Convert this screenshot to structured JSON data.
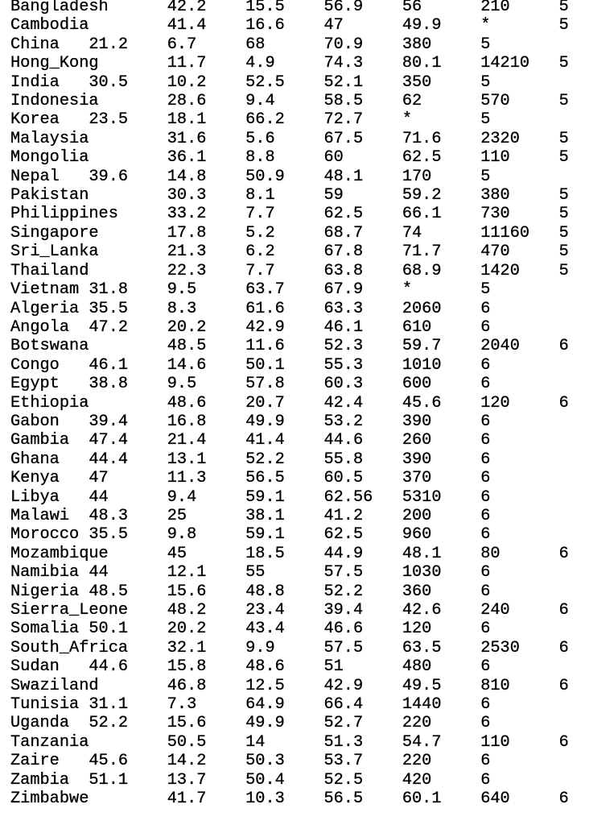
{
  "table": {
    "rows": [
      [
        "Bangladesh",
        "42.2",
        "15.5",
        "56.9",
        "56",
        "210",
        "5"
      ],
      [
        "Cambodia",
        "41.4",
        "16.6",
        "47",
        "49.9",
        "*",
        "5"
      ],
      [
        "China",
        "21.2",
        "6.7",
        "68",
        "70.9",
        "380",
        "5"
      ],
      [
        "Hong_Kong",
        "11.7",
        "4.9",
        "74.3",
        "80.1",
        "14210",
        "5"
      ],
      [
        "India",
        "30.5",
        "10.2",
        "52.5",
        "52.1",
        "350",
        "5"
      ],
      [
        "Indonesia",
        "28.6",
        "9.4",
        "58.5",
        "62",
        "570",
        "5"
      ],
      [
        "Korea",
        "23.5",
        "18.1",
        "66.2",
        "72.7",
        "*",
        "5"
      ],
      [
        "Malaysia",
        "31.6",
        "5.6",
        "67.5",
        "71.6",
        "2320",
        "5"
      ],
      [
        "Mongolia",
        "36.1",
        "8.8",
        "60",
        "62.5",
        "110",
        "5"
      ],
      [
        "Nepal",
        "39.6",
        "14.8",
        "50.9",
        "48.1",
        "170",
        "5"
      ],
      [
        "Pakistan",
        "30.3",
        "8.1",
        "59",
        "59.2",
        "380",
        "5"
      ],
      [
        "Philippines",
        "33.2",
        "7.7",
        "62.5",
        "66.1",
        "730",
        "5"
      ],
      [
        "Singapore",
        "17.8",
        "5.2",
        "68.7",
        "74",
        "11160",
        "5"
      ],
      [
        "Sri_Lanka",
        "21.3",
        "6.2",
        "67.8",
        "71.7",
        "470",
        "5"
      ],
      [
        "Thailand",
        "22.3",
        "7.7",
        "63.8",
        "68.9",
        "1420",
        "5"
      ],
      [
        "Vietnam",
        "31.8",
        "9.5",
        "63.7",
        "67.9",
        "*",
        "5"
      ],
      [
        "Algeria",
        "35.5",
        "8.3",
        "61.6",
        "63.3",
        "2060",
        "6"
      ],
      [
        "Angola",
        "47.2",
        "20.2",
        "42.9",
        "46.1",
        "610",
        "6"
      ],
      [
        "Botswana",
        "48.5",
        "11.6",
        "52.3",
        "59.7",
        "2040",
        "6"
      ],
      [
        "Congo",
        "46.1",
        "14.6",
        "50.1",
        "55.3",
        "1010",
        "6"
      ],
      [
        "Egypt",
        "38.8",
        "9.5",
        "57.8",
        "60.3",
        "600",
        "6"
      ],
      [
        "Ethiopia",
        "48.6",
        "20.7",
        "42.4",
        "45.6",
        "120",
        "6"
      ],
      [
        "Gabon",
        "39.4",
        "16.8",
        "49.9",
        "53.2",
        "390",
        "6"
      ],
      [
        "Gambia",
        "47.4",
        "21.4",
        "41.4",
        "44.6",
        "260",
        "6"
      ],
      [
        "Ghana",
        "44.4",
        "13.1",
        "52.2",
        "55.8",
        "390",
        "6"
      ],
      [
        "Kenya",
        "47",
        "11.3",
        "56.5",
        "60.5",
        "370",
        "6"
      ],
      [
        "Libya",
        "44",
        "9.4",
        "59.1",
        "62.56",
        "5310",
        "6"
      ],
      [
        "Malawi",
        "48.3",
        "25",
        "38.1",
        "41.2",
        "200",
        "6"
      ],
      [
        "Morocco",
        "35.5",
        "9.8",
        "59.1",
        "62.5",
        "960",
        "6"
      ],
      [
        "Mozambique",
        "45",
        "18.5",
        "44.9",
        "48.1",
        "80",
        "6"
      ],
      [
        "Namibia",
        "44",
        "12.1",
        "55",
        "57.5",
        "1030",
        "6"
      ],
      [
        "Nigeria",
        "48.5",
        "15.6",
        "48.8",
        "52.2",
        "360",
        "6"
      ],
      [
        "Sierra_Leone",
        "48.2",
        "23.4",
        "39.4",
        "42.6",
        "240",
        "6"
      ],
      [
        "Somalia",
        "50.1",
        "20.2",
        "43.4",
        "46.6",
        "120",
        "6"
      ],
      [
        "South_Africa",
        "32.1",
        "9.9",
        "57.5",
        "63.5",
        "2530",
        "6"
      ],
      [
        "Sudan",
        "44.6",
        "15.8",
        "48.6",
        "51",
        "480",
        "6"
      ],
      [
        "Swaziland",
        "46.8",
        "12.5",
        "42.9",
        "49.5",
        "810",
        "6"
      ],
      [
        "Tunisia",
        "31.1",
        "7.3",
        "64.9",
        "66.4",
        "1440",
        "6"
      ],
      [
        "Uganda",
        "52.2",
        "15.6",
        "49.9",
        "52.7",
        "220",
        "6"
      ],
      [
        "Tanzania",
        "50.5",
        "14",
        "51.3",
        "54.7",
        "110",
        "6"
      ],
      [
        "Zaire",
        "45.6",
        "14.2",
        "50.3",
        "53.7",
        "220",
        "6"
      ],
      [
        "Zambia",
        "51.1",
        "13.7",
        "50.4",
        "52.5",
        "420",
        "6"
      ],
      [
        "Zimbabwe",
        "41.7",
        "10.3",
        "56.5",
        "60.1",
        "640",
        "6"
      ]
    ]
  }
}
